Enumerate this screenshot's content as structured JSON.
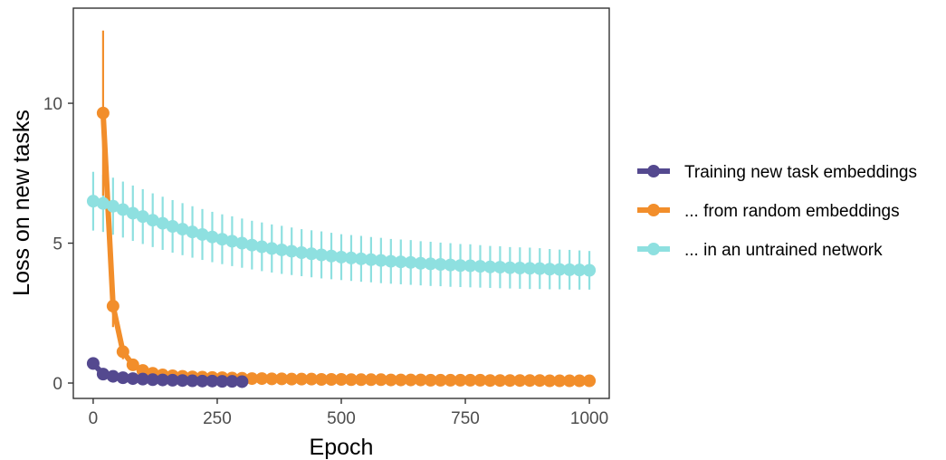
{
  "chart_data": {
    "type": "line",
    "title": "",
    "xlabel": "Epoch",
    "ylabel": "Loss on new tasks",
    "xlim": [
      -40,
      1040
    ],
    "ylim": [
      -0.55,
      13.4
    ],
    "x_ticks": [
      0,
      250,
      500,
      750,
      1000
    ],
    "y_ticks": [
      0,
      5,
      10
    ],
    "grid": false,
    "legend_position": "right",
    "series": [
      {
        "name": "Training new task embeddings",
        "color": "#54498f",
        "x": [
          0,
          20,
          40,
          60,
          80,
          100,
          120,
          140,
          160,
          180,
          200,
          220,
          240,
          260,
          280,
          300
        ],
        "y": [
          0.7,
          0.32,
          0.24,
          0.19,
          0.16,
          0.14,
          0.12,
          0.11,
          0.1,
          0.09,
          0.08,
          0.07,
          0.07,
          0.06,
          0.06,
          0.05
        ],
        "err_low": [],
        "err_high": []
      },
      {
        "name": "... from random embeddings",
        "color": "#f28e2b",
        "x": [
          20,
          40,
          60,
          80,
          100,
          120,
          140,
          160,
          180,
          200,
          220,
          240,
          260,
          280,
          300,
          320,
          340,
          360,
          380,
          400,
          420,
          440,
          460,
          480,
          500,
          520,
          540,
          560,
          580,
          600,
          620,
          640,
          660,
          680,
          700,
          720,
          740,
          760,
          780,
          800,
          820,
          840,
          860,
          880,
          900,
          920,
          940,
          960,
          980,
          1000
        ],
        "y": [
          9.65,
          2.75,
          1.12,
          0.65,
          0.45,
          0.35,
          0.29,
          0.26,
          0.24,
          0.22,
          0.21,
          0.2,
          0.19,
          0.18,
          0.17,
          0.16,
          0.16,
          0.15,
          0.15,
          0.14,
          0.14,
          0.14,
          0.13,
          0.13,
          0.13,
          0.12,
          0.12,
          0.12,
          0.12,
          0.11,
          0.11,
          0.11,
          0.11,
          0.1,
          0.1,
          0.1,
          0.1,
          0.1,
          0.1,
          0.09,
          0.09,
          0.09,
          0.09,
          0.09,
          0.09,
          0.08,
          0.08,
          0.08,
          0.08,
          0.08
        ],
        "err_low": [
          6.7,
          2.0,
          0.85,
          0.5,
          0.35,
          0.28,
          0.24,
          0.21,
          0.2,
          0.19,
          0.18,
          0.17,
          0.16,
          0.15,
          0.15,
          0.14,
          0.14,
          0.13,
          0.13,
          0.12,
          0.12,
          0.12,
          0.11,
          0.11,
          0.11,
          0.1,
          0.1,
          0.1,
          0.1,
          0.1,
          0.09,
          0.09,
          0.09,
          0.09,
          0.09,
          0.08,
          0.08,
          0.08,
          0.08,
          0.08,
          0.08,
          0.07,
          0.07,
          0.07,
          0.07,
          0.07,
          0.07,
          0.07,
          0.06,
          0.06
        ],
        "err_high": [
          12.6,
          3.5,
          1.4,
          0.8,
          0.55,
          0.42,
          0.34,
          0.31,
          0.28,
          0.25,
          0.24,
          0.23,
          0.22,
          0.21,
          0.2,
          0.18,
          0.18,
          0.17,
          0.17,
          0.16,
          0.16,
          0.16,
          0.15,
          0.15,
          0.15,
          0.14,
          0.14,
          0.14,
          0.14,
          0.13,
          0.13,
          0.13,
          0.13,
          0.12,
          0.12,
          0.12,
          0.12,
          0.12,
          0.12,
          0.11,
          0.11,
          0.11,
          0.11,
          0.11,
          0.11,
          0.1,
          0.1,
          0.1,
          0.1,
          0.1
        ]
      },
      {
        "name": "... in an untrained network",
        "color": "#8ee0e0",
        "x": [
          0,
          20,
          40,
          60,
          80,
          100,
          120,
          140,
          160,
          180,
          200,
          220,
          240,
          260,
          280,
          300,
          320,
          340,
          360,
          380,
          400,
          420,
          440,
          460,
          480,
          500,
          520,
          540,
          560,
          580,
          600,
          620,
          640,
          660,
          680,
          700,
          720,
          740,
          760,
          780,
          800,
          820,
          840,
          860,
          880,
          900,
          920,
          940,
          960,
          980,
          1000
        ],
        "y": [
          6.5,
          6.42,
          6.32,
          6.2,
          6.07,
          5.95,
          5.82,
          5.71,
          5.6,
          5.5,
          5.4,
          5.31,
          5.22,
          5.14,
          5.07,
          5.0,
          4.93,
          4.87,
          4.81,
          4.76,
          4.71,
          4.66,
          4.62,
          4.58,
          4.54,
          4.5,
          4.47,
          4.44,
          4.41,
          4.38,
          4.35,
          4.33,
          4.31,
          4.28,
          4.26,
          4.24,
          4.22,
          4.2,
          4.19,
          4.17,
          4.15,
          4.14,
          4.12,
          4.11,
          4.1,
          4.09,
          4.07,
          4.06,
          4.05,
          4.04,
          4.03
        ],
        "err_low": [
          5.45,
          5.4,
          5.3,
          5.2,
          5.08,
          4.97,
          4.86,
          4.76,
          4.66,
          4.57,
          4.48,
          4.4,
          4.32,
          4.25,
          4.18,
          4.12,
          4.06,
          4.0,
          3.95,
          3.9,
          3.86,
          3.82,
          3.78,
          3.74,
          3.71,
          3.68,
          3.65,
          3.62,
          3.6,
          3.57,
          3.55,
          3.53,
          3.51,
          3.49,
          3.47,
          3.46,
          3.44,
          3.43,
          3.42,
          3.41,
          3.4,
          3.39,
          3.38,
          3.37,
          3.36,
          3.36,
          3.35,
          3.35,
          3.34,
          3.34,
          3.34
        ],
        "err_high": [
          7.55,
          7.44,
          7.34,
          7.2,
          7.06,
          6.93,
          6.78,
          6.66,
          6.54,
          6.43,
          6.32,
          6.22,
          6.12,
          6.03,
          5.96,
          5.88,
          5.8,
          5.74,
          5.67,
          5.62,
          5.56,
          5.5,
          5.46,
          5.42,
          5.37,
          5.32,
          5.29,
          5.26,
          5.22,
          5.19,
          5.15,
          5.13,
          5.11,
          5.07,
          5.05,
          5.02,
          5.0,
          4.97,
          4.96,
          4.93,
          4.9,
          4.89,
          4.86,
          4.85,
          4.84,
          4.82,
          4.79,
          4.77,
          4.76,
          4.74,
          4.72
        ]
      }
    ]
  }
}
